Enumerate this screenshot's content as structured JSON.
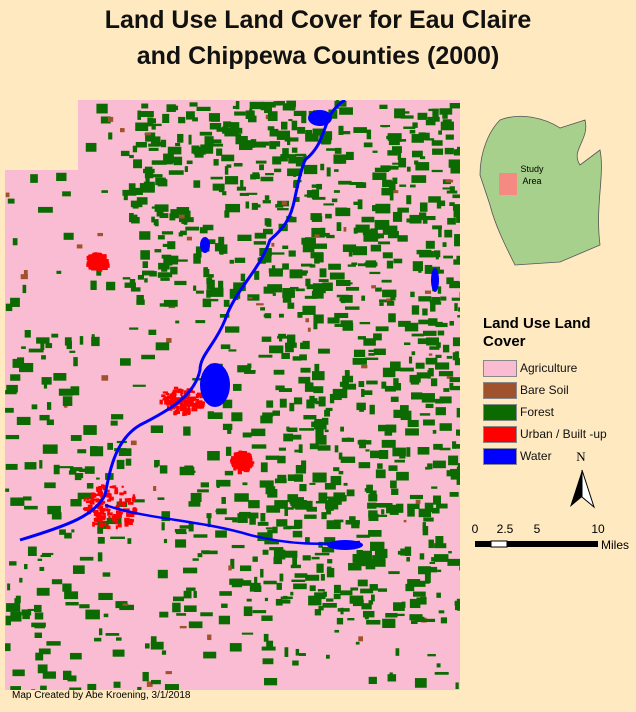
{
  "title": [
    "Land Use Land Cover for Eau Claire",
    "and Chippewa Counties (2000)"
  ],
  "inset": {
    "label": [
      "Study",
      "Area"
    ]
  },
  "legend": {
    "title": "Land Use Land Cover",
    "items": [
      {
        "label": "Agriculture",
        "color": "#f9bcd3"
      },
      {
        "label": "Bare Soil",
        "color": "#a0522d"
      },
      {
        "label": "Forest",
        "color": "#0b6a00"
      },
      {
        "label": "Urban / Built -up",
        "color": "#ff0000"
      },
      {
        "label": "Water",
        "color": "#0000ff"
      }
    ]
  },
  "north": "N",
  "scale_bar": {
    "labels": [
      "0",
      "2.5",
      "5",
      "10"
    ],
    "unit": "Miles"
  },
  "credit": "Map Created by Abe Kroening, 3/1/2018"
}
